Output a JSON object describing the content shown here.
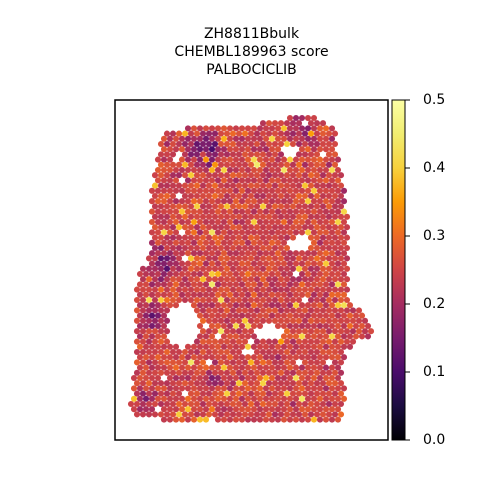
{
  "chart_data": {
    "type": "scatter",
    "plot_kind": "spatial hexagonal spot map",
    "title_lines": [
      "ZH8811Bbulk",
      "CHEMBL189963 score",
      "PALBOCICLIB"
    ],
    "xlabel": "",
    "ylabel": "",
    "axes_ticks_visible": false,
    "colormap": "inferno",
    "colorbar": {
      "vmin": 0.0,
      "vmax": 0.5,
      "ticks": [
        0.0,
        0.1,
        0.2,
        0.3,
        0.4,
        0.5
      ],
      "tick_labels": [
        "0.0",
        "0.1",
        "0.2",
        "0.3",
        "0.4",
        "0.5"
      ],
      "placement": "right"
    },
    "value_distribution": {
      "typical_range": [
        0.15,
        0.35
      ],
      "darker_low_regions": [
        "upper-center",
        "left-middle",
        "lower-left"
      ],
      "holes": [
        "left-center",
        "center",
        "right-center",
        "upper-right notch"
      ]
    }
  }
}
